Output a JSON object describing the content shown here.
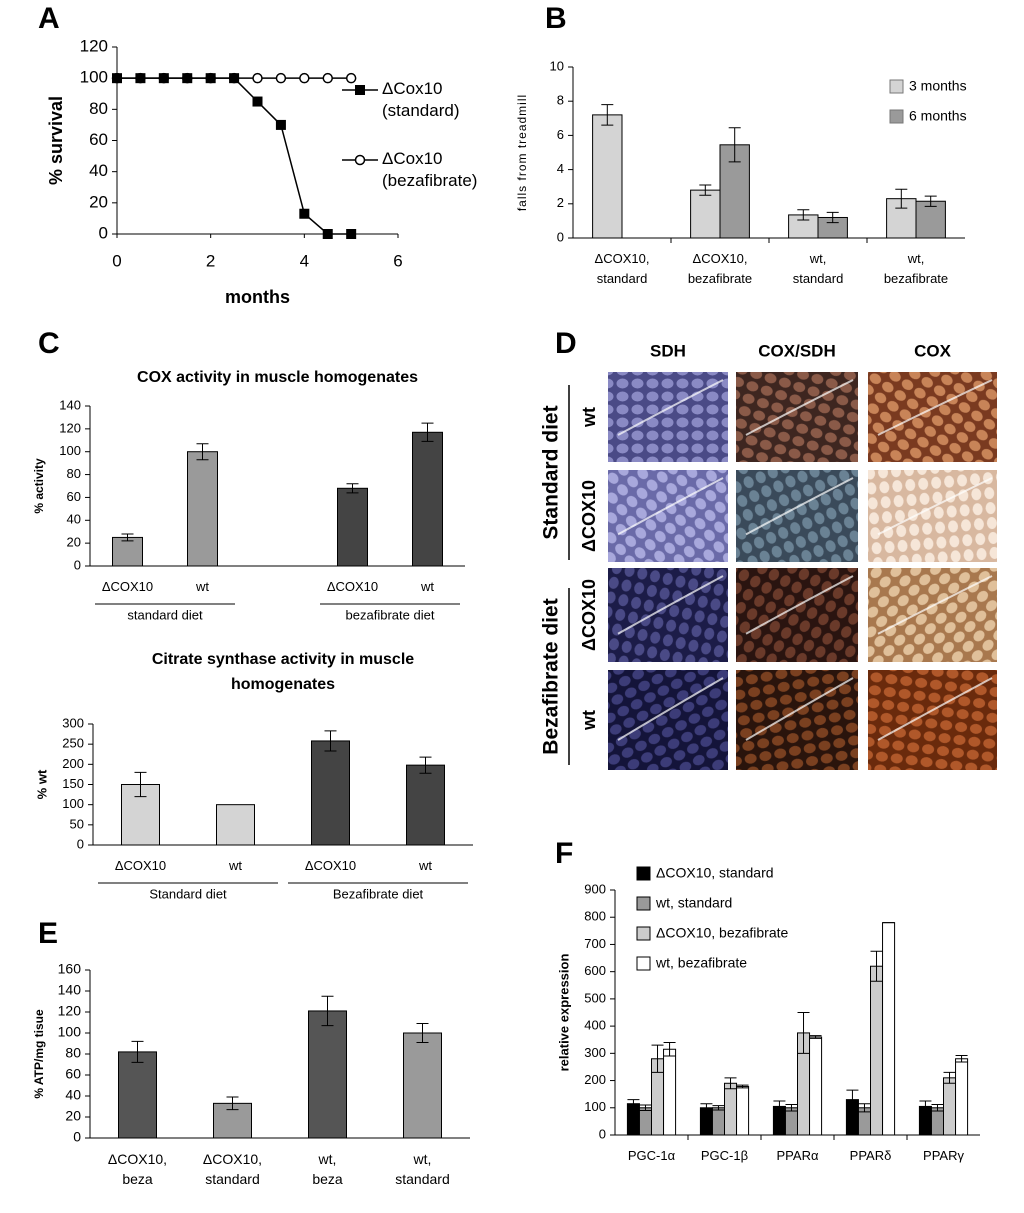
{
  "chart_data": [
    {
      "type": "line",
      "panel": "A",
      "xlabel": "months",
      "ylabel": "% survival",
      "x": [
        0,
        0.5,
        1,
        1.5,
        2,
        2.5,
        3,
        3.5,
        4,
        4.5,
        5
      ],
      "xlim": [
        0,
        6
      ],
      "xticks": [
        0,
        2,
        4,
        6
      ],
      "ylim": [
        0,
        120
      ],
      "yticks": [
        0,
        20,
        40,
        60,
        80,
        100,
        120
      ],
      "legend": "right",
      "series": [
        {
          "name": "ΔCox10 (standard)",
          "color": "#000000",
          "marker": "square",
          "marker_fill": "#000000",
          "values": [
            100,
            100,
            100,
            100,
            100,
            100,
            85,
            70,
            13,
            0,
            0
          ]
        },
        {
          "name": "ΔCox10 (bezafibrate)",
          "color": "#000000",
          "marker": "circle",
          "marker_fill": "#ffffff",
          "values": [
            100,
            100,
            100,
            100,
            100,
            100,
            100,
            100,
            100,
            100,
            100
          ]
        }
      ]
    },
    {
      "type": "bar",
      "panel": "B",
      "ylabel": "falls from treadmill",
      "categories": [
        "ΔCOX10, standard",
        "ΔCOX10, bezafibrate",
        "wt, standard",
        "wt, bezafibrate"
      ],
      "ylim": [
        0,
        10
      ],
      "yticks": [
        0,
        2,
        4,
        6,
        8,
        10
      ],
      "legend": "upper right",
      "series": [
        {
          "name": "3 months",
          "color": "#d4d4d4",
          "values": [
            7.2,
            2.8,
            1.35,
            2.3
          ],
          "errors": [
            0.6,
            0.3,
            0.3,
            0.55
          ]
        },
        {
          "name": "6 months",
          "color": "#9a9a9a",
          "values": [
            0,
            5.45,
            1.2,
            2.15
          ],
          "errors": [
            0,
            1.0,
            0.3,
            0.3
          ]
        }
      ]
    },
    {
      "type": "bar",
      "panel": "C",
      "title": "COX activity in muscle homogenates",
      "ylabel": "% activity",
      "categories": [
        "ΔCOX10",
        "wt",
        "ΔCOX10",
        "wt"
      ],
      "groups": [
        "standard diet",
        "bezafibrate diet"
      ],
      "values": [
        25,
        100,
        68,
        117
      ],
      "errors": [
        3,
        7,
        4,
        8
      ],
      "colors": [
        "#9a9a9a",
        "#9a9a9a",
        "#444444",
        "#444444"
      ],
      "ylim": [
        0,
        140
      ],
      "yticks": [
        0,
        20,
        40,
        60,
        80,
        100,
        120,
        140
      ]
    },
    {
      "type": "bar",
      "title": "Citrate synthase activity in muscle homogenates",
      "ylabel": "% wt",
      "categories": [
        "ΔCOX10",
        "wt",
        "ΔCOX10",
        "wt"
      ],
      "groups": [
        "Standard diet",
        "Bezafibrate diet"
      ],
      "values": [
        150,
        100,
        258,
        198
      ],
      "errors": [
        30,
        null,
        25,
        20
      ],
      "colors": [
        "#d4d4d4",
        "#d4d4d4",
        "#444444",
        "#444444"
      ],
      "ylim": [
        0,
        300
      ],
      "yticks": [
        0,
        50,
        100,
        150,
        200,
        250,
        300
      ]
    },
    {
      "type": "bar",
      "panel": "E",
      "ylabel": "% ATP/mg tisue",
      "categories": [
        "ΔCOX10, beza",
        "ΔCOX10, standard",
        "wt, beza",
        "wt, standard"
      ],
      "values": [
        82,
        33,
        121,
        100
      ],
      "errors": [
        10,
        6,
        14,
        9
      ],
      "colors": [
        "#555555",
        "#9a9a9a",
        "#555555",
        "#9a9a9a"
      ],
      "ylim": [
        0,
        160
      ],
      "yticks": [
        0,
        20,
        40,
        60,
        80,
        100,
        120,
        140,
        160
      ]
    },
    {
      "type": "bar",
      "panel": "F",
      "ylabel": "relative expression",
      "categories": [
        "PGC-1α",
        "PGC-1β",
        "PPARα",
        "PPARδ",
        "PPARγ"
      ],
      "ylim": [
        0,
        900
      ],
      "yticks": [
        0,
        100,
        200,
        300,
        400,
        500,
        600,
        700,
        800,
        900
      ],
      "legend": "upper left",
      "series": [
        {
          "name": "ΔCOX10, standard",
          "color": "#000000",
          "values": [
            115,
            100,
            105,
            130,
            105
          ],
          "errors": [
            15,
            15,
            20,
            35,
            20
          ]
        },
        {
          "name": "wt, standard",
          "color": "#9a9a9a",
          "values": [
            100,
            100,
            100,
            100,
            100
          ],
          "errors": [
            10,
            8,
            12,
            15,
            12
          ]
        },
        {
          "name": "ΔCOX10, bezafibrate",
          "color": "#cccccc",
          "values": [
            280,
            190,
            375,
            620,
            210
          ],
          "errors": [
            50,
            20,
            75,
            55,
            20
          ]
        },
        {
          "name": "wt, bezafibrate",
          "color": "#ffffff",
          "values": [
            315,
            178,
            360,
            780,
            280
          ],
          "errors": [
            25,
            5,
            5,
            0,
            12
          ]
        }
      ]
    }
  ],
  "panel_d": {
    "label": "D",
    "columns": [
      "SDH",
      "COX/SDH",
      "COX"
    ],
    "rows": [
      "wt",
      "ΔCOX10",
      "ΔCOX10",
      "wt"
    ],
    "groups": [
      "Standard diet",
      "Bezafibrate diet"
    ]
  }
}
